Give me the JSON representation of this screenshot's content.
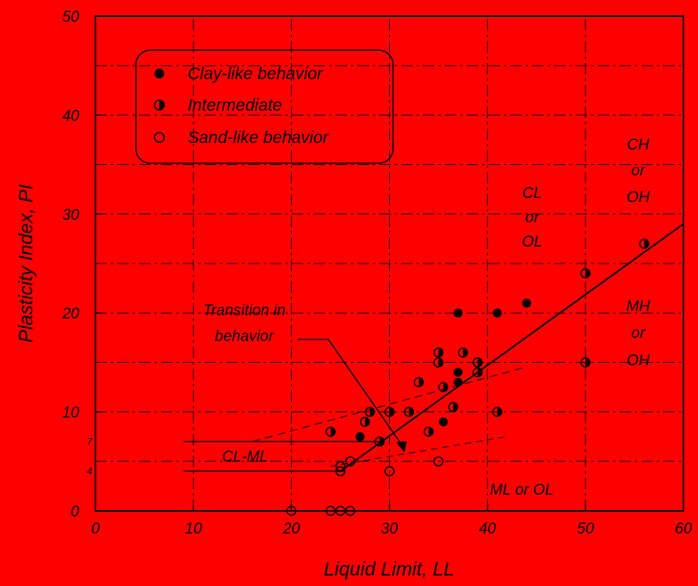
{
  "chart_data": {
    "type": "scatter",
    "xlabel": "Liquid Limit, LL",
    "ylabel": "Plasticity Index, PI",
    "xlim": [
      0,
      60
    ],
    "ylim": [
      0,
      50
    ],
    "x_ticks": [
      "0",
      "10",
      "20",
      "30",
      "40",
      "50",
      "60"
    ],
    "y_ticks": [
      "0",
      "10",
      "20",
      "30",
      "40",
      "50"
    ],
    "extra_y_ticks": [
      "4",
      "7"
    ],
    "grid": true,
    "legend_position": "top-left",
    "legend": [
      {
        "label": "Clay-like behavior",
        "marker": "filled"
      },
      {
        "label": "Intermediate",
        "marker": "half"
      },
      {
        "label": "Sand-like behavior",
        "marker": "open"
      }
    ],
    "series": [
      {
        "name": "Clay-like behavior",
        "points": [
          [
            27,
            7.5
          ],
          [
            35.5,
            9
          ],
          [
            37,
            20
          ],
          [
            37,
            13
          ],
          [
            37,
            14
          ],
          [
            41,
            20
          ],
          [
            44,
            21
          ]
        ]
      },
      {
        "name": "Intermediate",
        "points": [
          [
            24,
            8
          ],
          [
            27.5,
            9
          ],
          [
            28,
            10
          ],
          [
            29,
            7
          ],
          [
            30,
            10
          ],
          [
            32,
            10
          ],
          [
            33,
            13
          ],
          [
            34,
            8
          ],
          [
            35,
            16
          ],
          [
            35,
            15
          ],
          [
            35.5,
            12.5
          ],
          [
            36.5,
            10.5
          ],
          [
            37.5,
            16
          ],
          [
            39,
            14
          ],
          [
            39,
            15
          ],
          [
            41,
            10
          ],
          [
            50,
            24
          ],
          [
            50,
            15
          ],
          [
            56,
            27
          ]
        ]
      },
      {
        "name": "Sand-like behavior",
        "points": [
          [
            20,
            0
          ],
          [
            24,
            0
          ],
          [
            25,
            0
          ],
          [
            26,
            0
          ],
          [
            25,
            4
          ],
          [
            25,
            4.5
          ],
          [
            26,
            5
          ],
          [
            30,
            4
          ],
          [
            35,
            5
          ]
        ]
      }
    ],
    "a_line": {
      "pi_at_ll_25": 4,
      "pi_at_ll_60": 29
    },
    "u_line_visible": true,
    "zone_labels": [
      {
        "text": [
          "CL",
          "or",
          "OL"
        ]
      },
      {
        "text": [
          "CH",
          "or",
          "OH"
        ]
      },
      {
        "text": [
          "MH",
          "or",
          "OH"
        ]
      },
      {
        "text": [
          "ML or OL"
        ]
      },
      {
        "text": [
          "CL-ML"
        ]
      }
    ],
    "annotation": {
      "text": [
        "Transition in",
        "behavior"
      ]
    }
  }
}
